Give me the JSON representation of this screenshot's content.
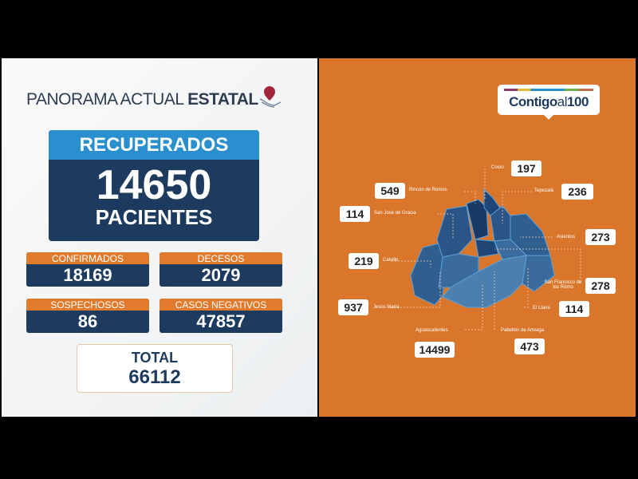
{
  "header": {
    "title_light": "PANORAMA ACTUAL",
    "title_bold": "ESTATAL"
  },
  "recuperados": {
    "label": "RECUPERADOS",
    "value": "14650",
    "unit": "PACIENTES"
  },
  "stats": [
    {
      "label": "CONFIRMADOS",
      "value": "18169"
    },
    {
      "label": "DECESOS",
      "value": "2079"
    },
    {
      "label": "SOSPECHOSOS",
      "value": "86"
    },
    {
      "label": "CASOS NEGATIVOS",
      "value": "47857"
    }
  ],
  "total": {
    "label": "TOTAL",
    "value": "66112"
  },
  "logo": {
    "text_bold": "Contigo",
    "text_light": "al",
    "number": "100"
  },
  "municipios": [
    {
      "name": "Cosío",
      "value": "197"
    },
    {
      "name": "Rincón de Romos",
      "value": "549"
    },
    {
      "name": "Tepezalá",
      "value": "236"
    },
    {
      "name": "San José de Gracia",
      "value": "114"
    },
    {
      "name": "Asientos",
      "value": "273"
    },
    {
      "name": "Calvillo",
      "value": "219"
    },
    {
      "name": "San Francisco de los Romo",
      "value": "278"
    },
    {
      "name": "Jesús María",
      "value": "937"
    },
    {
      "name": "El Llano",
      "value": "114"
    },
    {
      "name": "Aguascalientes",
      "value": "14499"
    },
    {
      "name": "Pabellón de Arteaga",
      "value": "473"
    }
  ],
  "colors": {
    "orange": "#d9762b",
    "navy": "#1d3b5e",
    "blue": "#2a8fce"
  }
}
